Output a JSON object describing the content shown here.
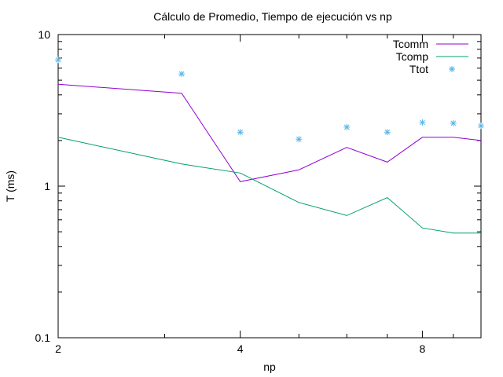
{
  "chart_data": {
    "type": "line",
    "title": "Cálculo de Promedio, Tiempo de ejecución vs np",
    "xlabel": "np",
    "ylabel": "T (ms)",
    "x_scale": "log2",
    "y_scale": "log10",
    "xlim": [
      2,
      10
    ],
    "ylim": [
      0.1,
      10
    ],
    "x_ticks": [
      {
        "value": 2,
        "label": "2"
      },
      {
        "value": 4,
        "label": "4"
      },
      {
        "value": 8,
        "label": "8"
      }
    ],
    "y_ticks": [
      {
        "value": 0.1,
        "label": "0.1"
      },
      {
        "value": 1,
        "label": "1"
      },
      {
        "value": 10,
        "label": "10"
      }
    ],
    "legend_position": "top-right",
    "series": [
      {
        "name": "Tcomm",
        "style": "line",
        "color": "#9400d3",
        "points": [
          [
            2,
            4.7
          ],
          [
            3.2,
            4.1
          ],
          [
            4,
            1.07
          ],
          [
            5,
            1.28
          ],
          [
            6,
            1.8
          ],
          [
            7,
            1.44
          ],
          [
            8,
            2.1
          ],
          [
            9,
            2.1
          ],
          [
            10,
            2.0
          ]
        ]
      },
      {
        "name": "Tcomp",
        "style": "line",
        "color": "#009e73",
        "points": [
          [
            2,
            2.1
          ],
          [
            3.2,
            1.4
          ],
          [
            4,
            1.22
          ],
          [
            5,
            0.78
          ],
          [
            6,
            0.64
          ],
          [
            7,
            0.84
          ],
          [
            8,
            0.53
          ],
          [
            9,
            0.49
          ],
          [
            10,
            0.49
          ]
        ]
      },
      {
        "name": "Ttot",
        "style": "points",
        "color": "#56b4e9",
        "points": [
          [
            2,
            6.8
          ],
          [
            3.2,
            5.5
          ],
          [
            4,
            2.27
          ],
          [
            5,
            2.04
          ],
          [
            6,
            2.45
          ],
          [
            7,
            2.27
          ],
          [
            8,
            2.63
          ],
          [
            9,
            2.6
          ],
          [
            10,
            2.5
          ]
        ]
      }
    ]
  }
}
